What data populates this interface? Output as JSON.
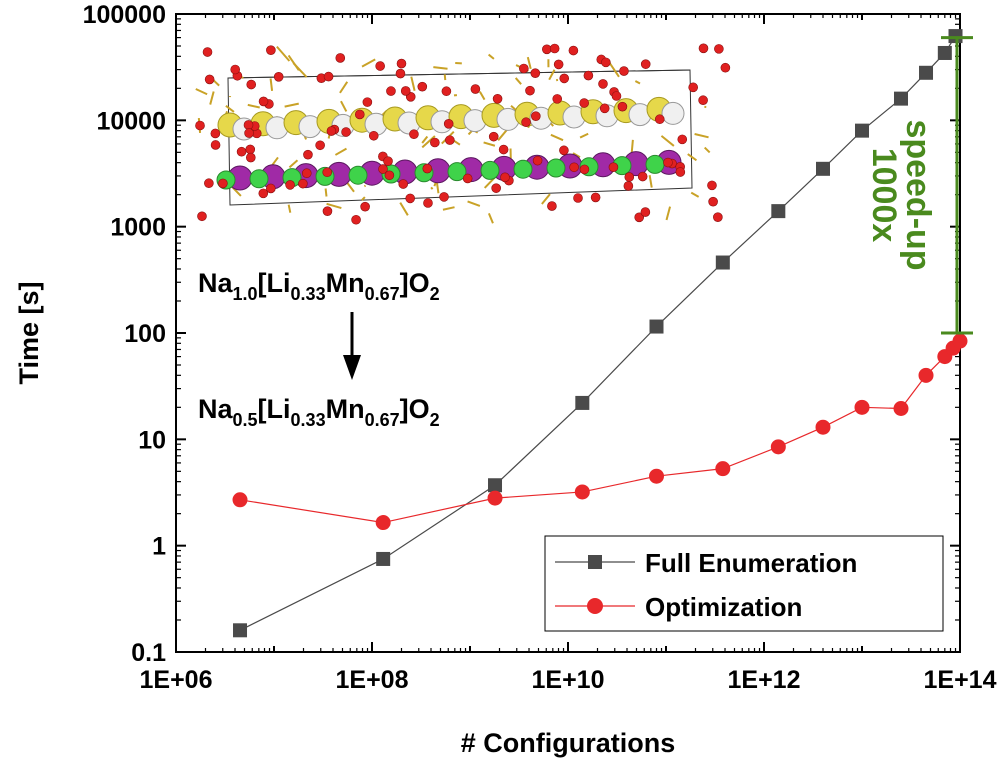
{
  "chart_data": {
    "type": "line",
    "title": "",
    "xlabel": "# Configurations",
    "ylabel": "Time [s]",
    "x_scale": "log",
    "y_scale": "log",
    "xlim": [
      1000000,
      100000000000000
    ],
    "ylim": [
      0.1,
      100000
    ],
    "x_tick_labels": [
      "1E+06",
      "1E+08",
      "1E+10",
      "1E+12",
      "1E+14"
    ],
    "y_tick_labels": [
      "0.1",
      "1",
      "10",
      "100",
      "1000",
      "10000",
      "100000"
    ],
    "grid": false,
    "legend_position": "bottom-right",
    "series": [
      {
        "name": "Full Enumeration",
        "color": "#4a4a4a",
        "marker": "square",
        "x": [
          4500000.0,
          130000000.0,
          1800000000.0,
          14000000000.0,
          80000000000.0,
          380000000000.0,
          1400000000000.0,
          4000000000000.0,
          10000000000000.0,
          25000000000000.0,
          45000000000000.0,
          70000000000000.0,
          90000000000000.0
        ],
        "y": [
          0.16,
          0.75,
          3.7,
          22,
          115,
          460,
          1400,
          3500,
          8000,
          16000,
          28000,
          43000,
          62000
        ]
      },
      {
        "name": "Optimization",
        "color": "#e8282b",
        "marker": "circle",
        "x": [
          4500000.0,
          130000000.0,
          1800000000.0,
          14000000000.0,
          80000000000.0,
          380000000000.0,
          1400000000000.0,
          4000000000000.0,
          10000000000000.0,
          25000000000000.0,
          45000000000000.0,
          70000000000000.0,
          85000000000000.0,
          100000000000000.0
        ],
        "y": [
          2.7,
          1.65,
          2.8,
          3.2,
          4.5,
          5.3,
          8.5,
          13,
          20,
          19.5,
          40,
          60,
          72,
          84
        ]
      }
    ],
    "annotations": {
      "formula_top": {
        "a": "Na",
        "b": "1.0",
        "c": "[Li",
        "d": "0.33",
        "e": "Mn",
        "f": "0.67",
        "g": "]O",
        "h": "2"
      },
      "formula_bottom": {
        "a": "Na",
        "b": "0.5",
        "c": "[Li",
        "d": "0.33",
        "e": "Mn",
        "f": "0.67",
        "g": "]O",
        "h": "2"
      },
      "speedup_line1": "1000x",
      "speedup_line2": "speed-up",
      "speedup_color": "#4a8a1e",
      "speedup_range": [
        100,
        60000
      ]
    }
  }
}
